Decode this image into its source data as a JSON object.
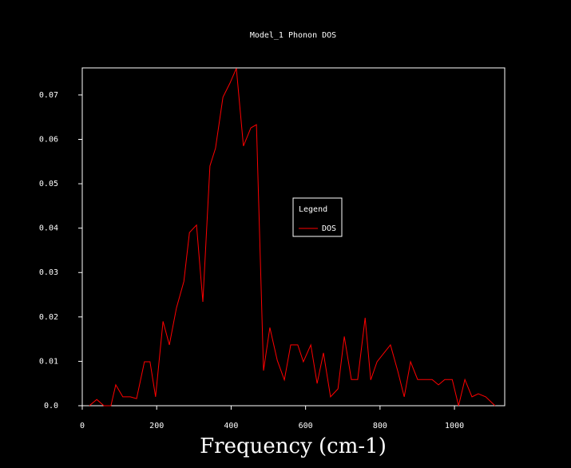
{
  "chart_data": {
    "type": "line",
    "title": "Model_1 Phonon DOS",
    "x_label": "Frequency (cm-1)",
    "x": [
      19,
      39,
      58,
      77,
      90,
      109,
      129,
      146,
      167,
      182,
      197,
      217,
      234,
      253,
      273,
      288,
      307,
      324,
      343,
      358,
      378,
      397,
      414,
      433,
      453,
      468,
      487,
      504,
      524,
      543,
      560,
      579,
      594,
      614,
      631,
      648,
      667,
      687,
      704,
      723,
      740,
      760,
      775,
      792,
      809,
      828,
      848,
      865,
      882,
      901,
      921,
      940,
      957,
      974,
      994,
      1011,
      1028,
      1047,
      1064,
      1084,
      1109
    ],
    "series": [
      {
        "name": "DOS",
        "color": "#ff0000",
        "values": [
          0,
          0.0014,
          0,
          0,
          0.0047,
          0.002,
          0.002,
          0.0016,
          0.0099,
          0.0099,
          0.002,
          0.019,
          0.0137,
          0.022,
          0.028,
          0.039,
          0.0407,
          0.0234,
          0.054,
          0.058,
          0.0695,
          0.0727,
          0.076,
          0.0585,
          0.0626,
          0.0633,
          0.0079,
          0.0176,
          0.0102,
          0.0058,
          0.0137,
          0.0137,
          0.0099,
          0.0137,
          0.005,
          0.0119,
          0.002,
          0.0038,
          0.0156,
          0.0059,
          0.0059,
          0.0198,
          0.0058,
          0.0099,
          0.0117,
          0.0137,
          0.0077,
          0.002,
          0.0099,
          0.0059,
          0.0059,
          0.0059,
          0.0047,
          0.0059,
          0.0059,
          0,
          0.0059,
          0.002,
          0.0027,
          0.002,
          0
        ]
      }
    ],
    "legend_title": "Legend",
    "xlim": [
      0,
      1135
    ],
    "xticks": [
      0,
      200,
      400,
      600,
      800,
      1000
    ],
    "ylim": [
      0,
      0.0761
    ],
    "yticks": [
      {
        "value": 0,
        "label": "0.0"
      },
      0.01,
      0.02,
      0.03,
      0.04,
      0.05,
      0.06,
      0.07
    ]
  }
}
